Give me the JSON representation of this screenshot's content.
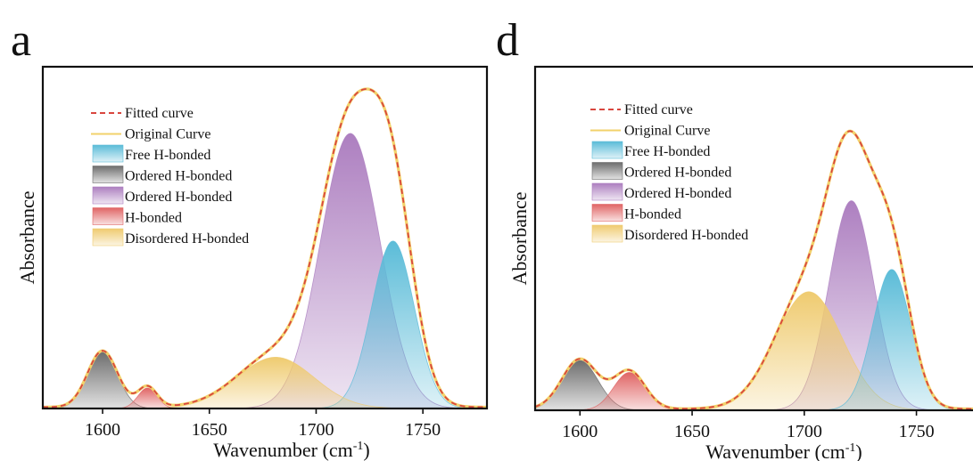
{
  "chart_data": [
    {
      "panel_label": "a",
      "type": "area",
      "title": "",
      "xlabel": "Wavenumber (cm",
      "xlabel_sup": "-1",
      "xlabel_close": ")",
      "ylabel": "Absorbance",
      "xlim": [
        1572,
        1780
      ],
      "ylim": [
        0,
        1.0
      ],
      "xticks": [
        1600,
        1650,
        1700,
        1750
      ],
      "grid": false,
      "legend_position": "top-left",
      "peaks": [
        {
          "name": "Free H-bonded",
          "center": 1736,
          "height": 0.49,
          "width": 10
        },
        {
          "name": "Ordered H-bonded",
          "center": 1600,
          "height": 0.165,
          "width": 7
        },
        {
          "name": "Ordered H-bonded",
          "center": 1716,
          "height": 0.805,
          "width": 14
        },
        {
          "name": "H-bonded",
          "center": 1621,
          "height": 0.06,
          "width": 4.5
        },
        {
          "name": "Disordered H-bonded",
          "center": 1681,
          "height": 0.15,
          "width": 18
        }
      ],
      "legend": [
        "Fitted curve",
        "Original Curve",
        "Free H-bonded",
        "Ordered H-bonded",
        "Ordered H-bonded",
        "H-bonded",
        "Disordered H-bonded"
      ]
    },
    {
      "panel_label": "d",
      "type": "area",
      "title": "",
      "xlabel": "Wavenumber (cm",
      "xlabel_sup": "-1",
      "xlabel_close": ")",
      "ylabel": "Absorbance",
      "xlim": [
        1580,
        1778
      ],
      "ylim": [
        0,
        1.0
      ],
      "xticks": [
        1600,
        1650,
        1700,
        1750
      ],
      "grid": false,
      "legend_position": "top-left",
      "peaks": [
        {
          "name": "Free H-bonded",
          "center": 1739,
          "height": 0.41,
          "width": 8.5
        },
        {
          "name": "Ordered H-bonded",
          "center": 1600,
          "height": 0.145,
          "width": 8
        },
        {
          "name": "Ordered H-bonded",
          "center": 1721,
          "height": 0.61,
          "width": 10
        },
        {
          "name": "H-bonded",
          "center": 1622,
          "height": 0.11,
          "width": 7
        },
        {
          "name": "Disordered H-bonded",
          "center": 1702,
          "height": 0.345,
          "width": 15
        }
      ],
      "legend": [
        "Fitted curve",
        "Original Curve",
        "Free H-bonded",
        "Ordered H-bonded",
        "Ordered H-bonded",
        "H-bonded",
        "Disordered H-bonded"
      ]
    }
  ],
  "colors": {
    "fitted": "#d9463e",
    "original": "#f2d26b",
    "peaks": [
      "#5bbcd8",
      "#6e6e6e",
      "#ad7fc0",
      "#e06565",
      "#efcb70"
    ]
  }
}
